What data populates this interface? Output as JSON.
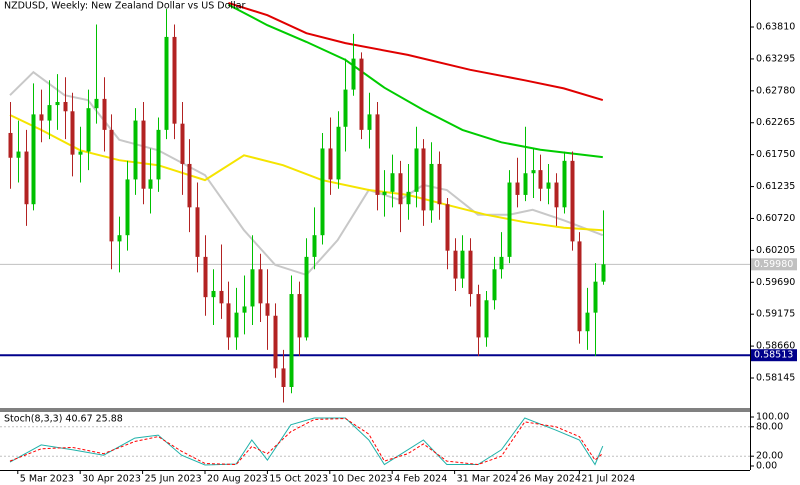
{
  "chart_data": {
    "type": "candlestick",
    "title": "NZDUSD, Weekly:  New Zealand Dollar vs US Dollar",
    "open": [
      0.621,
      0.617,
      0.618,
      0.6095,
      0.624,
      0.623,
      0.6255,
      0.626,
      0.6245,
      0.6175,
      0.618,
      0.625,
      0.6265,
      0.6215,
      0.6035,
      0.6045,
      0.6135,
      0.623,
      0.612,
      0.6135,
      0.6215,
      0.6365,
      0.6225,
      0.616,
      0.609,
      0.601,
      0.5945,
      0.5955,
      0.5935,
      0.588,
      0.592,
      0.593,
      0.599,
      0.5935,
      0.5915,
      0.583,
      0.58,
      0.595,
      0.588,
      0.601,
      0.6045,
      0.6185,
      0.6135,
      0.622,
      0.628,
      0.633,
      0.6215,
      0.624,
      0.611,
      0.6115,
      0.6145,
      0.6095,
      0.6115,
      0.6185,
      0.6085,
      0.616,
      0.6095,
      0.602,
      0.5975,
      0.602,
      0.595,
      0.588,
      0.594,
      0.599,
      0.601,
      0.613,
      0.611,
      0.6145,
      0.615,
      0.612,
      0.613,
      0.609,
      0.6165,
      0.6035,
      0.589,
      0.592,
      0.597
    ],
    "high": [
      0.626,
      0.623,
      0.6215,
      0.629,
      0.628,
      0.6295,
      0.6305,
      0.63,
      0.6275,
      0.622,
      0.628,
      0.6385,
      0.63,
      0.624,
      0.6075,
      0.6165,
      0.625,
      0.626,
      0.6185,
      0.6235,
      0.641,
      0.6385,
      0.626,
      0.62,
      0.613,
      0.6045,
      0.599,
      0.603,
      0.597,
      0.596,
      0.598,
      0.6045,
      0.6015,
      0.599,
      0.5935,
      0.586,
      0.598,
      0.597,
      0.604,
      0.609,
      0.621,
      0.6235,
      0.6245,
      0.633,
      0.637,
      0.634,
      0.6275,
      0.626,
      0.615,
      0.6175,
      0.6165,
      0.616,
      0.622,
      0.62,
      0.6195,
      0.618,
      0.6105,
      0.604,
      0.6045,
      0.604,
      0.5965,
      0.5955,
      0.601,
      0.605,
      0.615,
      0.617,
      0.622,
      0.6185,
      0.6175,
      0.616,
      0.6145,
      0.618,
      0.618,
      0.605,
      0.596,
      0.6,
      0.6085
    ],
    "low": [
      0.612,
      0.613,
      0.606,
      0.6085,
      0.6195,
      0.62,
      0.6215,
      0.62,
      0.614,
      0.613,
      0.615,
      0.6225,
      0.618,
      0.599,
      0.5985,
      0.602,
      0.611,
      0.6095,
      0.608,
      0.6115,
      0.62,
      0.62,
      0.611,
      0.605,
      0.5985,
      0.5915,
      0.59,
      0.591,
      0.586,
      0.586,
      0.5885,
      0.59,
      0.5905,
      0.586,
      0.5815,
      0.5775,
      0.579,
      0.585,
      0.5875,
      0.599,
      0.603,
      0.611,
      0.612,
      0.618,
      0.627,
      0.62,
      0.6185,
      0.6085,
      0.6075,
      0.609,
      0.605,
      0.607,
      0.609,
      0.606,
      0.6065,
      0.607,
      0.599,
      0.5955,
      0.596,
      0.593,
      0.585,
      0.5865,
      0.5925,
      0.5975,
      0.6,
      0.609,
      0.61,
      0.6105,
      0.61,
      0.6095,
      0.606,
      0.608,
      0.602,
      0.587,
      0.586,
      0.585,
      0.5965
    ],
    "close": [
      0.617,
      0.618,
      0.6095,
      0.624,
      0.623,
      0.6255,
      0.626,
      0.6245,
      0.6175,
      0.618,
      0.625,
      0.6265,
      0.6215,
      0.6035,
      0.6045,
      0.6135,
      0.623,
      0.612,
      0.6135,
      0.6215,
      0.6365,
      0.6225,
      0.616,
      0.609,
      0.601,
      0.5945,
      0.5955,
      0.5935,
      0.588,
      0.592,
      0.593,
      0.599,
      0.5935,
      0.5915,
      0.583,
      0.58,
      0.595,
      0.588,
      0.601,
      0.6045,
      0.6185,
      0.6135,
      0.622,
      0.628,
      0.633,
      0.6215,
      0.624,
      0.611,
      0.6115,
      0.6145,
      0.6095,
      0.6115,
      0.6185,
      0.6085,
      0.616,
      0.6095,
      0.602,
      0.5975,
      0.602,
      0.595,
      0.588,
      0.594,
      0.599,
      0.601,
      0.613,
      0.611,
      0.6145,
      0.615,
      0.612,
      0.613,
      0.609,
      0.6165,
      0.6035,
      0.589,
      0.592,
      0.597,
      0.5998
    ],
    "up_color": "#00c000",
    "down_color": "#b22222",
    "xlim": [
      -1.28,
      94.87
    ],
    "xticks": [
      {
        "value": 1,
        "label": "5 Mar 2023"
      },
      {
        "value": 9,
        "label": "30 Apr 2023"
      },
      {
        "value": 17,
        "label": "25 Jun 2023"
      },
      {
        "value": 25,
        "label": "20 Aug 2023"
      },
      {
        "value": 33,
        "label": "15 Oct 2023"
      },
      {
        "value": 41,
        "label": "10 Dec 2023"
      },
      {
        "value": 49,
        "label": "4 Feb 2024"
      },
      {
        "value": 57,
        "label": "31 Mar 2024"
      },
      {
        "value": 65,
        "label": "26 May 2024"
      },
      {
        "value": 73,
        "label": "21 Jul 2024"
      }
    ],
    "ylim": [
      0.57661,
      0.64246
    ],
    "yticks": [
      {
        "value": 0.6381,
        "label": "0.63810"
      },
      {
        "value": 0.63295,
        "label": "0.63295"
      },
      {
        "value": 0.6278,
        "label": "0.62780"
      },
      {
        "value": 0.62265,
        "label": "0.62265"
      },
      {
        "value": 0.6175,
        "label": "0.61750"
      },
      {
        "value": 0.61235,
        "label": "0.61235"
      },
      {
        "value": 0.6072,
        "label": "0.60720"
      },
      {
        "value": 0.60205,
        "label": "0.60205"
      },
      {
        "value": 0.5969,
        "label": "0.59690"
      },
      {
        "value": 0.59175,
        "label": "0.59175"
      },
      {
        "value": 0.5866,
        "label": "0.58660"
      },
      {
        "value": 0.58145,
        "label": "0.58145"
      }
    ],
    "moving_averages": [
      {
        "color": "#c8c8c8",
        "x": [
          0,
          3,
          7,
          10,
          14,
          19,
          25,
          30,
          34,
          38,
          42,
          46,
          50,
          53,
          56,
          60,
          64,
          67,
          71,
          76
        ],
        "values": [
          0.6271,
          0.6308,
          0.6271,
          0.6263,
          0.6199,
          0.6182,
          0.6142,
          0.6053,
          0.5997,
          0.5981,
          0.6037,
          0.6118,
          0.6102,
          0.6126,
          0.6118,
          0.6078,
          0.6078,
          0.6086,
          0.6069,
          0.6045
        ]
      },
      {
        "color": "#f5e400",
        "x": [
          0,
          4,
          9,
          14,
          19,
          25,
          30,
          35,
          40,
          46,
          51,
          56,
          61,
          66,
          71,
          76
        ],
        "values": [
          0.6239,
          0.6215,
          0.6182,
          0.6166,
          0.6158,
          0.6134,
          0.6174,
          0.6158,
          0.6134,
          0.6118,
          0.611,
          0.6094,
          0.6078,
          0.6066,
          0.6057,
          0.6053
        ]
      },
      {
        "color": "#00cc00",
        "x": [
          28,
          33,
          38,
          43,
          48,
          53,
          58,
          63,
          68,
          76
        ],
        "values": [
          0.6417,
          0.6384,
          0.6357,
          0.6328,
          0.6283,
          0.6247,
          0.6215,
          0.6195,
          0.6183,
          0.6171
        ]
      },
      {
        "color": "#e00000",
        "x": [
          28,
          33,
          38,
          43,
          51,
          59,
          66,
          71,
          76
        ],
        "values": [
          0.642,
          0.64,
          0.6371,
          0.6355,
          0.6336,
          0.6312,
          0.6295,
          0.6282,
          0.6263
        ]
      }
    ],
    "price_line": {
      "value": 0.5998,
      "label": "0.59980",
      "color": "#c0c0c0"
    },
    "level_line": {
      "value": 0.58513,
      "label": "0.58513",
      "color": "#00008b"
    },
    "oscillator": {
      "label": "Stoch(8,3,3) 40.67 25.88",
      "ylim": [
        -8.2,
        114.3
      ],
      "yticks": [
        {
          "value": 100,
          "label": "100.00"
        },
        {
          "value": 80,
          "label": "80.00"
        },
        {
          "value": 20,
          "label": "20.00"
        },
        {
          "value": 0,
          "label": "0.00"
        }
      ],
      "series": [
        {
          "color": "#20b2aa",
          "x": [
            0,
            4,
            8,
            12,
            16,
            19,
            22,
            25,
            29,
            31,
            33,
            36,
            39,
            43,
            46,
            48,
            51,
            53,
            56,
            60,
            63,
            66,
            70,
            73,
            75,
            76
          ],
          "values": [
            8,
            43,
            33,
            22,
            57,
            63,
            22,
            2,
            4,
            53,
            12,
            84,
            98,
            98,
            53,
            3,
            33,
            53,
            3,
            3,
            33,
            98,
            73,
            53,
            3,
            40.67
          ]
        },
        {
          "color": "#ff0000",
          "dash": true,
          "x": [
            0,
            4,
            8,
            12,
            16,
            19,
            22,
            25,
            29,
            31,
            33,
            36,
            39,
            43,
            46,
            48,
            51,
            53,
            56,
            60,
            63,
            66,
            70,
            73,
            75,
            76
          ],
          "values": [
            10,
            35,
            38,
            25,
            50,
            60,
            30,
            5,
            3,
            40,
            25,
            70,
            95,
            97,
            65,
            10,
            25,
            45,
            10,
            3,
            20,
            90,
            80,
            60,
            12,
            25.88
          ]
        }
      ]
    }
  }
}
